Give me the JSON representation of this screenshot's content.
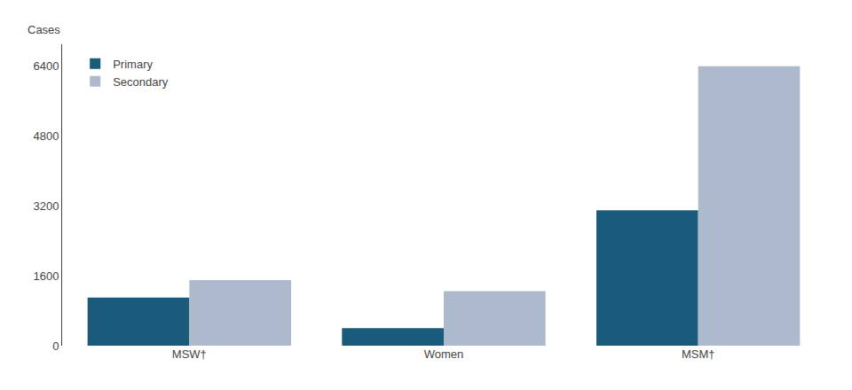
{
  "chart_data": {
    "type": "bar",
    "ylabel": "Cases",
    "categories": [
      "MSW†",
      "Women",
      "MSM†"
    ],
    "series": [
      {
        "name": "Primary",
        "color": "#1a5a7a",
        "values": [
          1100,
          400,
          3100
        ]
      },
      {
        "name": "Secondary",
        "color": "#adb9cc",
        "values": [
          1500,
          1250,
          6400
        ]
      }
    ],
    "ylim": [
      0,
      6900
    ],
    "yticks": [
      0,
      1600,
      3200,
      4800,
      6400
    ],
    "grid": false,
    "legend": "upper left"
  }
}
